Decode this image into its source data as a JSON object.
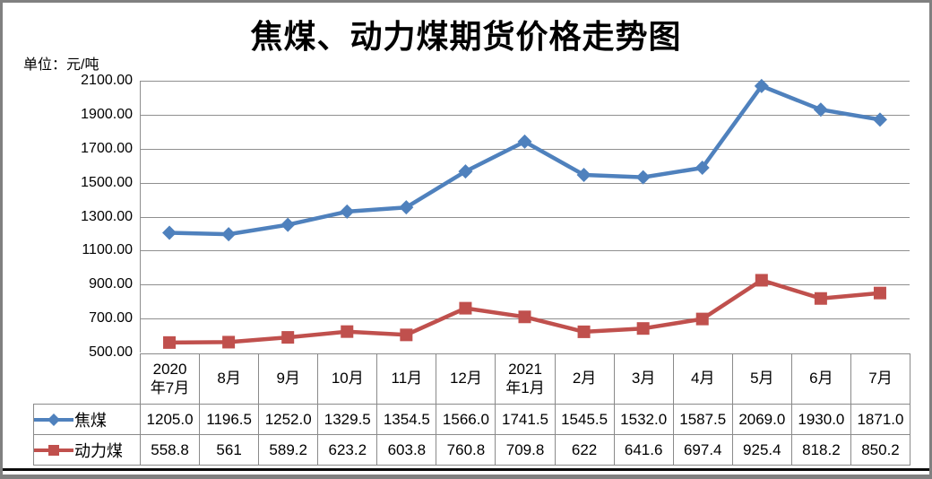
{
  "chart_data": {
    "type": "line",
    "title": "焦煤、动力煤期货价格走势图",
    "unit_label": "单位：元/吨",
    "categories": [
      "2020\n年7月",
      "8月",
      "9月",
      "10月",
      "11月",
      "12月",
      "2021\n年1月",
      "2月",
      "3月",
      "4月",
      "5月",
      "6月",
      "7月"
    ],
    "series": [
      {
        "name": "焦煤",
        "key": "coking-coal",
        "color": "#4F81BD",
        "marker": "diamond",
        "values": [
          1205.0,
          1196.5,
          1252.0,
          1329.5,
          1354.5,
          1566.0,
          1741.5,
          1545.5,
          1532.0,
          1587.5,
          2069.0,
          1930.0,
          1871.0
        ],
        "labels": [
          "1205.0",
          "1196.5",
          "1252.0",
          "1329.5",
          "1354.5",
          "1566.0",
          "1741.5",
          "1545.5",
          "1532.0",
          "1587.5",
          "2069.0",
          "1930.0",
          "1871.0"
        ]
      },
      {
        "name": "动力煤",
        "key": "thermal-coal",
        "color": "#C0504D",
        "marker": "square",
        "values": [
          558.8,
          561,
          589.2,
          623.2,
          603.8,
          760.8,
          709.8,
          622,
          641.6,
          697.4,
          925.4,
          818.2,
          850.2
        ],
        "labels": [
          "558.8",
          "561",
          "589.2",
          "623.2",
          "603.8",
          "760.8",
          "709.8",
          "622",
          "641.6",
          "697.4",
          "925.4",
          "818.2",
          "850.2"
        ]
      }
    ],
    "ylim": [
      500,
      2100
    ],
    "ytick_step": 200,
    "ytick_labels": [
      "2100.00",
      "1900.00",
      "1700.00",
      "1500.00",
      "1300.00",
      "1100.00",
      "900.00",
      "700.00",
      "500.00"
    ],
    "grid": true,
    "legend_position": "data-table-left-column"
  },
  "colors": {
    "grid": "#8f8f8f",
    "axis": "#8f8f8f",
    "table_border": "#8a8a8a",
    "frame": "#808080",
    "bottom_rule": "#0a0a0a",
    "text": "#000000"
  }
}
